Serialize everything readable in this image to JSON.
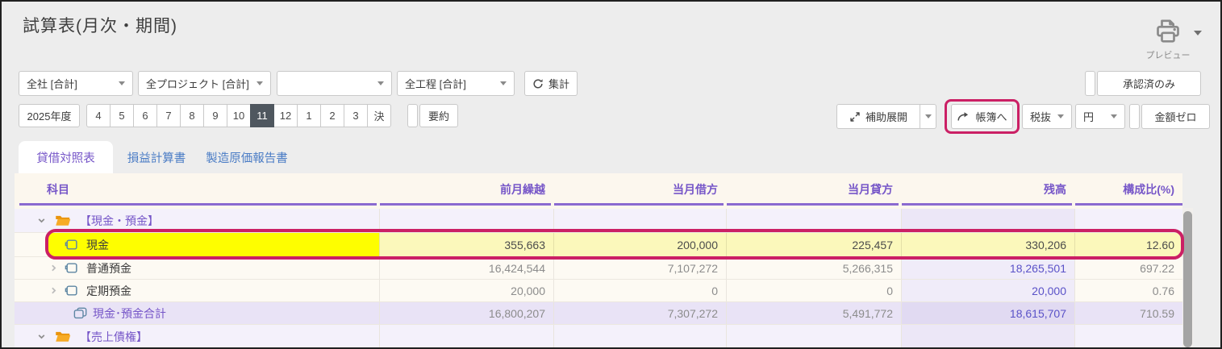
{
  "title": "試算表(月次・期間)",
  "print": {
    "preview_label": "プレビュー"
  },
  "filters": {
    "company_select": "全社 [合計]",
    "project_select": "全プロジェクト [合計]",
    "blank_select": "",
    "process_select": "全工程 [合計]",
    "aggregate_button": "集計",
    "approved_only_button": "承認済のみ"
  },
  "period": {
    "fiscal_year": "2025年度",
    "months": [
      "4",
      "5",
      "6",
      "7",
      "8",
      "9",
      "10",
      "11",
      "12",
      "1",
      "2",
      "3",
      "決"
    ],
    "selected_month": "11",
    "summary_button": "要約"
  },
  "actions": {
    "expand_button": "補助展開",
    "ledger_button": "帳簿へ",
    "tax_select": "税抜",
    "currency_select": "円",
    "zero_button": "金額ゼロ"
  },
  "tabs": [
    {
      "label": "貸借対照表",
      "active": true
    },
    {
      "label": "損益計算書",
      "active": false
    },
    {
      "label": "製造原価報告書",
      "active": false
    }
  ],
  "table": {
    "columns": [
      "科目",
      "前月繰越",
      "当月借方",
      "当月貸方",
      "残高",
      "構成比(%)"
    ],
    "rows": [
      {
        "type": "category",
        "chevron": "down",
        "icon": "folder-open",
        "label": "【現金・預金】",
        "values": [
          "",
          "",
          "",
          "",
          ""
        ]
      },
      {
        "type": "account",
        "chevron": "none",
        "icon": "ledger",
        "label": "現金",
        "highlight": true,
        "values": [
          "355,663",
          "200,000",
          "225,457",
          "330,206",
          "12.60"
        ],
        "balance_link": false
      },
      {
        "type": "account",
        "chevron": "right",
        "icon": "ledger",
        "label": "普通預金",
        "values": [
          "16,424,544",
          "7,107,272",
          "5,266,315",
          "18,265,501",
          "697.22"
        ],
        "balance_link": true
      },
      {
        "type": "account",
        "chevron": "right",
        "icon": "ledger",
        "label": "定期預金",
        "values": [
          "20,000",
          "0",
          "0",
          "20,000",
          "0.76"
        ],
        "balance_link": true
      },
      {
        "type": "total",
        "chevron": "none",
        "icon": "ledger-stack",
        "label": "現金･預金合計",
        "values": [
          "16,800,207",
          "7,307,272",
          "5,491,772",
          "18,615,707",
          "710.59"
        ],
        "balance_link": true
      },
      {
        "type": "category",
        "chevron": "down",
        "icon": "folder-open",
        "label": "【売上債権】",
        "values": [
          "",
          "",
          "",
          "",
          ""
        ]
      }
    ]
  },
  "colors": {
    "highlight_yellow": "#fefe00",
    "highlight_pale_yellow": "#fbf8bb",
    "annotation_pink": "#cb2065",
    "header_purple": "#7656c8",
    "underline_purple": "#8a6ad0",
    "tab_inactive_blue": "#4a7cc5",
    "link_purple": "#5a52c8",
    "selected_month_bg": "#4f575f",
    "total_row_bg": "#e9e3f6",
    "folder_orange": "#f7ab26"
  }
}
